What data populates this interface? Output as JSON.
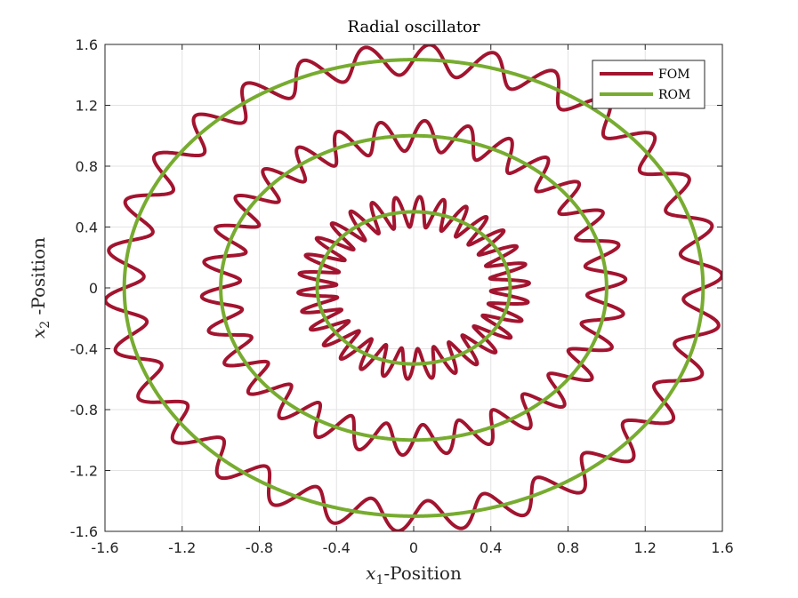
{
  "chart_data": {
    "type": "line",
    "title": "Radial oscillator",
    "xlabel": {
      "var": "x",
      "sub": "1",
      "text": "-Position"
    },
    "ylabel": {
      "var": "x",
      "sub": "2",
      "text": " -Position"
    },
    "xlim": [
      -1.6,
      1.6
    ],
    "ylim": [
      -1.6,
      1.6
    ],
    "xticks": [
      "-1.6",
      "-1.2",
      "-0.8",
      "-0.4",
      "0",
      "0.4",
      "0.8",
      "1.2",
      "1.6"
    ],
    "yticks": [
      "-1.6",
      "-1.2",
      "-0.8",
      "-0.4",
      "0",
      "0.4",
      "0.8",
      "1.2",
      "1.6"
    ],
    "grid": true,
    "legend": "top-right",
    "series": [
      {
        "name": "FOM",
        "color": "#a2142f",
        "description": "oscillating circles",
        "rings": [
          {
            "radius": 0.5,
            "amplitude": 0.1,
            "oscillations": 30
          },
          {
            "radius": 1.0,
            "amplitude": 0.1,
            "oscillations": 30
          },
          {
            "radius": 1.5,
            "amplitude": 0.1,
            "oscillations": 30
          }
        ]
      },
      {
        "name": "ROM",
        "color": "#77ac30",
        "rings": [
          {
            "radius": 0.5
          },
          {
            "radius": 1.0
          },
          {
            "radius": 1.5
          }
        ]
      }
    ]
  }
}
